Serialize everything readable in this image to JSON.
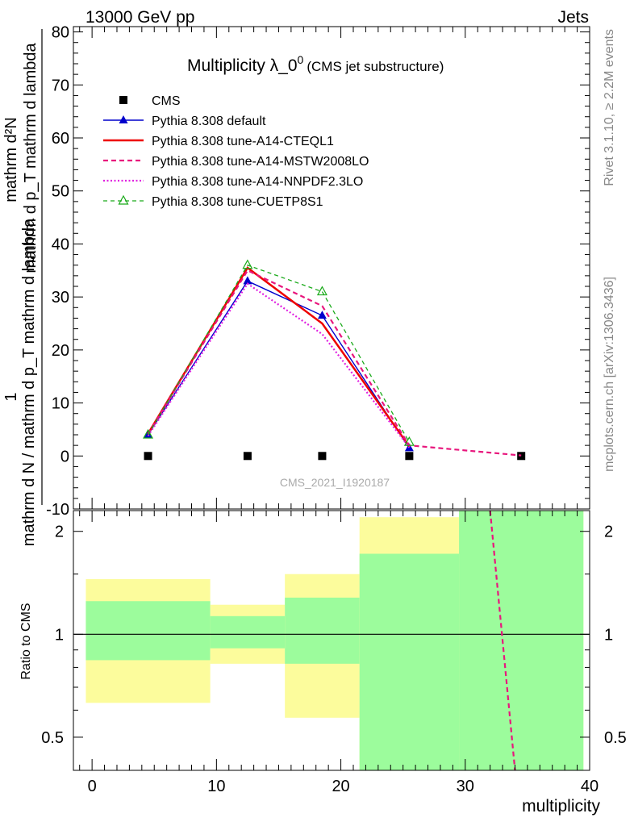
{
  "header": {
    "left": "13000 GeV pp",
    "right": "Jets"
  },
  "side_labels": {
    "rivet": "Rivet 3.1.10, ≥ 2.2M events",
    "mcplots": "mcplots.cern.ch [arXiv:1306.3436]"
  },
  "chart_data": [
    {
      "type": "line",
      "title_main": "Multiplicity λ_0",
      "title_sup": "0",
      "title_sub": "(CMS jet substructure)",
      "watermark": "CMS_2021_I1920187",
      "ylabel": {
        "numerator": "mathrm d²N",
        "numerator_part2": "mathrm d p_T mathrm d lambda",
        "denominator": "mathrm d N / mathrm d p_T mathrm d lambda",
        "prefix": "1"
      },
      "ylim": [
        -10,
        81
      ],
      "yticks": [
        -10,
        0,
        10,
        20,
        30,
        40,
        50,
        60,
        70,
        80
      ],
      "xlim": [
        -1.5,
        40
      ],
      "legend_position": "top-left",
      "series": [
        {
          "name": "CMS",
          "style": "markers",
          "marker": "square",
          "color": "#000000",
          "x": [
            4.5,
            12.5,
            18.5,
            25.5,
            34.5
          ],
          "values": [
            0,
            0,
            0,
            0,
            0
          ]
        },
        {
          "name": "Pythia 8.308 default",
          "style": "solid",
          "marker": "triangle",
          "color": "#0000cc",
          "x": [
            4.5,
            12.5,
            18.5,
            25.5
          ],
          "values": [
            4.0,
            33.0,
            26.5,
            1.5
          ]
        },
        {
          "name": "Pythia 8.308 tune-A14-CTEQL1",
          "style": "solid-thick",
          "marker": "none",
          "color": "#ee0000",
          "x": [
            4.5,
            12.5,
            18.5,
            25.5
          ],
          "values": [
            4.2,
            35.5,
            25.0,
            1.8
          ]
        },
        {
          "name": "Pythia 8.308 tune-A14-MSTW2008LO",
          "style": "dashed",
          "marker": "none",
          "color": "#e8177d",
          "x": [
            4.5,
            12.5,
            18.5,
            25.5,
            34.5
          ],
          "values": [
            4.1,
            35.0,
            28.3,
            2.0,
            0.1
          ]
        },
        {
          "name": "Pythia 8.308 tune-A14-NNPDF2.3LO",
          "style": "dotted",
          "marker": "none",
          "color": "#e020e0",
          "x": [
            4.5,
            12.5,
            18.5,
            25.5
          ],
          "values": [
            3.8,
            32.5,
            23.0,
            1.6
          ]
        },
        {
          "name": "Pythia 8.308 tune-CUETP8S1",
          "style": "dashed-thin",
          "marker": "open-triangle",
          "color": "#1aaa1a",
          "x": [
            4.5,
            12.5,
            18.5,
            25.5
          ],
          "values": [
            4.0,
            36.0,
            31.0,
            2.6
          ]
        }
      ]
    },
    {
      "type": "line",
      "ylabel": "Ratio to CMS",
      "xlabel": "multiplicity",
      "log_y": true,
      "ylim": [
        0.4,
        2.3
      ],
      "yticks": [
        0.5,
        1,
        2
      ],
      "ytick_labels": [
        "0.5",
        "1",
        "2"
      ],
      "xticks": [
        0,
        10,
        20,
        30,
        40
      ],
      "xtick_labels": [
        "0",
        "10",
        "20",
        "30",
        "40"
      ],
      "xlim": [
        -1.5,
        40
      ],
      "reference_line": 1,
      "bands": [
        {
          "x_from": -0.5,
          "x_to": 9.5,
          "inner": [
            0.84,
            1.25
          ],
          "outer": [
            0.63,
            1.45
          ]
        },
        {
          "x_from": 9.5,
          "x_to": 15.5,
          "inner": [
            0.91,
            1.13
          ],
          "outer": [
            0.82,
            1.22
          ]
        },
        {
          "x_from": 15.5,
          "x_to": 21.5,
          "inner": [
            0.82,
            1.28
          ],
          "outer": [
            0.57,
            1.5
          ]
        },
        {
          "x_from": 21.5,
          "x_to": 29.5,
          "inner": [
            0.3,
            1.72
          ],
          "outer": [
            0.3,
            2.2
          ]
        },
        {
          "x_from": 29.5,
          "x_to": 39.5,
          "inner": [
            0.3,
            3.0
          ],
          "outer": [
            0.3,
            3.0
          ]
        }
      ],
      "ratio_series": [
        {
          "name": "Pythia 8.308 tune-A14-MSTW2008LO",
          "style": "dashed",
          "color": "#e8177d",
          "x": [
            32.0,
            34.0
          ],
          "values": [
            2.3,
            0.4
          ]
        }
      ],
      "colors": {
        "inner_band": "#9cfc9c",
        "outer_band": "#fcfc9c"
      }
    }
  ]
}
